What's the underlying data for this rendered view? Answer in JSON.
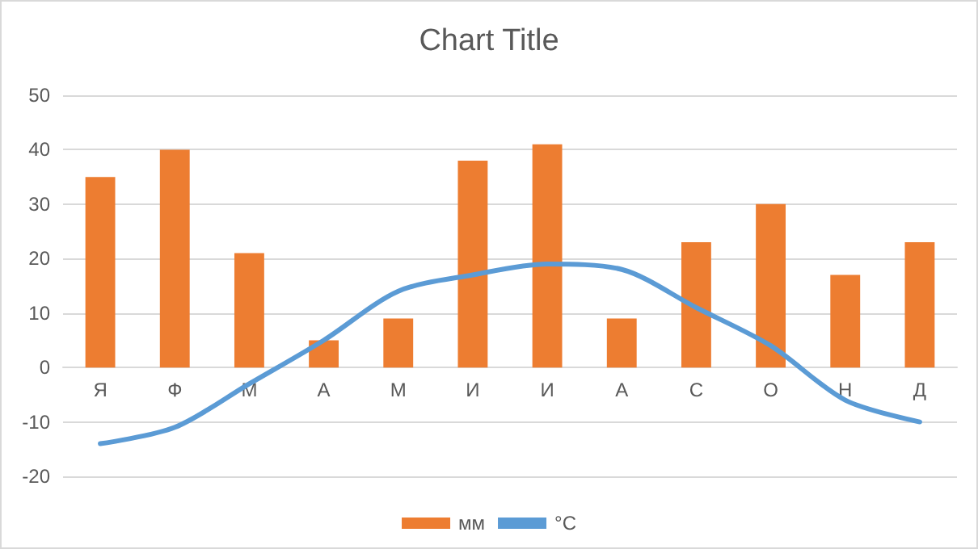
{
  "chart_data": {
    "type": "bar",
    "title": "Chart Title",
    "categories": [
      "Я",
      "Ф",
      "М",
      "А",
      "М",
      "И",
      "И",
      "А",
      "С",
      "О",
      "Н",
      "Д"
    ],
    "series": [
      {
        "name": "мм",
        "color": "#ed7d31",
        "values": [
          35,
          40,
          21,
          5,
          9,
          38,
          41,
          9,
          23,
          30,
          17,
          23
        ]
      },
      {
        "name": "°C",
        "type": "line",
        "color": "#5b9bd5",
        "values": [
          -14,
          -11,
          -3,
          5,
          14,
          17,
          19,
          18,
          11,
          4,
          -6,
          -10
        ]
      }
    ],
    "ylim": [
      -20,
      50
    ],
    "yticks": [
      -20,
      -10,
      0,
      10,
      20,
      30,
      40,
      50
    ],
    "grid": "y",
    "legend": "bottom",
    "marker": "none",
    "line_style": "solid"
  }
}
